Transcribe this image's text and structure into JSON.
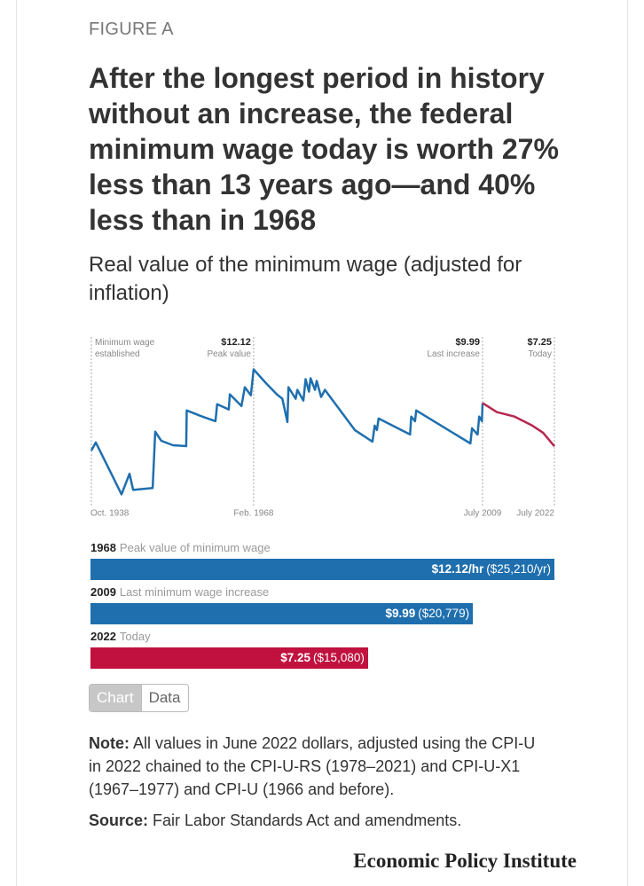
{
  "header": {
    "kicker": "FIGURE A",
    "title": "After the longest period in history without an increase, the federal minimum wage today is worth 27% less than 13 years ago—and 40% less than in 1968",
    "subtitle": "Real value of the minimum wage (adjusted for inflation)"
  },
  "chart_data": [
    {
      "type": "line",
      "xlim": [
        1938.75,
        2022.5
      ],
      "ylim": [
        3.5,
        14
      ],
      "xticks": [
        {
          "value": 1938.75,
          "label": "Oct. 1938"
        },
        {
          "value": 1968.1,
          "label": "Feb. 1968"
        },
        {
          "value": 2009.5,
          "label": "July 2009"
        },
        {
          "value": 2022.5,
          "label": "July 2022"
        }
      ],
      "annotations": [
        {
          "x": 1938.75,
          "text": "Minimum wage established"
        },
        {
          "x": 1968.1,
          "label": "$12.12",
          "text": "Peak value"
        },
        {
          "x": 2009.5,
          "label": "$9.99",
          "text": "Last increase"
        },
        {
          "x": 2022.5,
          "label": "$7.25",
          "text": "Today"
        }
      ],
      "series": [
        {
          "color": "#1f6fae",
          "x": [
            1938.75,
            1939.55,
            1944.2,
            1945.65,
            1946.3,
            1949.83,
            1950.3,
            1951.4,
            1953.5,
            1955.9,
            1956.0,
            1958.8,
            1961.2,
            1961.5,
            1963.6,
            1963.8,
            1965.9,
            1966.5,
            1967.6,
            1968.1,
            1970.4,
            1972.3,
            1973.3,
            1974.2,
            1974.4,
            1975.7,
            1976.0,
            1977.1,
            1977.5,
            1978.1,
            1978.4,
            1979.2,
            1979.5,
            1980.3,
            1981.0,
            1986.4,
            1989.6,
            1990.0,
            1990.4,
            1990.7,
            1996.4,
            1996.6,
            1997.3,
            1997.5,
            2007.3,
            2007.6,
            2008.6,
            2008.9,
            2009.4,
            2009.5
          ],
          "values": [
            6.98,
            7.49,
            4.21,
            5.51,
            4.49,
            4.61,
            8.17,
            7.6,
            7.32,
            7.26,
            9.52,
            9.13,
            8.84,
            9.92,
            9.58,
            10.54,
            9.8,
            10.99,
            10.48,
            12.12,
            11.22,
            10.54,
            10.26,
            8.79,
            10.99,
            10.26,
            10.82,
            10.14,
            11.5,
            10.71,
            11.56,
            10.82,
            11.39,
            10.37,
            10.82,
            8.28,
            7.54,
            8.56,
            8.28,
            9.01,
            8.0,
            9.13,
            8.84,
            9.52,
            7.43,
            8.39,
            8.0,
            9.13,
            8.84,
            9.99
          ]
        },
        {
          "color": "#b5284f",
          "x": [
            2009.5,
            2012.1,
            2015.3,
            2018.5,
            2020.45,
            2022.5
          ],
          "values": [
            9.99,
            9.41,
            9.13,
            8.56,
            8.11,
            7.25
          ]
        }
      ]
    },
    {
      "type": "bar",
      "orientation": "horizontal",
      "categories": [
        "1968",
        "2009",
        "2022"
      ],
      "descriptions": [
        "Peak value of minimum wage",
        "Last minimum wage increase",
        "Today"
      ],
      "values": [
        12.12,
        9.99,
        7.25
      ],
      "value_labels": [
        "$12.12/hr",
        "$9.99",
        "$7.25"
      ],
      "annual_labels": [
        "($25,210/yr)",
        "($20,779)",
        "($15,080)"
      ],
      "colors": [
        "#1f6fae",
        "#1f6fae",
        "#c0113f"
      ],
      "xlim": [
        0,
        12.12
      ]
    }
  ],
  "toggle": [
    "Chart",
    "Data"
  ],
  "note": {
    "label": "Note:",
    "text": "All values in June 2022 dollars, adjusted using the CPI-U in 2022 chained to the CPI-U-RS (1978–2021) and CPI-U-X1 (1967–1977) and CPI-U (1966 and before)."
  },
  "source": {
    "label": "Source:",
    "text": "Fair Labor Standards Act and amendments."
  },
  "logo": "Economic Policy Institute"
}
